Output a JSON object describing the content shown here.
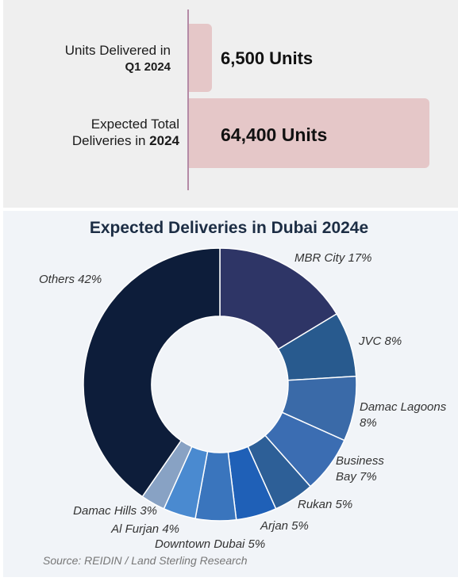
{
  "summary": {
    "q1_label_line1": "Units  Delivered in",
    "q1_label_line2": "Q1 2024",
    "q1_value": "6,500 Units",
    "q1_units": 6500,
    "total_label_line1": "Expected Total",
    "total_label_line2_plain": "Deliveries in ",
    "total_label_line2_bold": "2024",
    "total_value": "64,400 Units",
    "total_units": 64400,
    "bar_color": "#e5c7c8"
  },
  "chart_data": {
    "type": "pie",
    "title": "Expected Deliveries in Dubai 2024e",
    "donut": true,
    "slices": [
      {
        "label": "MBR City 17%",
        "value": 17,
        "color": "#2e3566"
      },
      {
        "label": "JVC 8%",
        "value": 8,
        "color": "#285a8e"
      },
      {
        "label": "Damac Lagoons 8%",
        "value": 8,
        "color": "#3a6aa8"
      },
      {
        "label": "Business Bay 7%",
        "value": 7,
        "color": "#3b6db2"
      },
      {
        "label": "Rukan 5%",
        "value": 5,
        "color": "#2d5f97"
      },
      {
        "label": "Arjan 5%",
        "value": 5,
        "color": "#1f60b7"
      },
      {
        "label": "Downtown Dubai 5%",
        "value": 5,
        "color": "#3a75bd"
      },
      {
        "label": "Al Furjan 4%",
        "value": 4,
        "color": "#4a8ad0"
      },
      {
        "label": "Damac Hills 3%",
        "value": 3,
        "color": "#88a2c4"
      },
      {
        "label": "Others 42%",
        "value": 42,
        "color": "#0d1d3a"
      }
    ]
  },
  "source": "Source: REIDIN / Land Sterling Research"
}
